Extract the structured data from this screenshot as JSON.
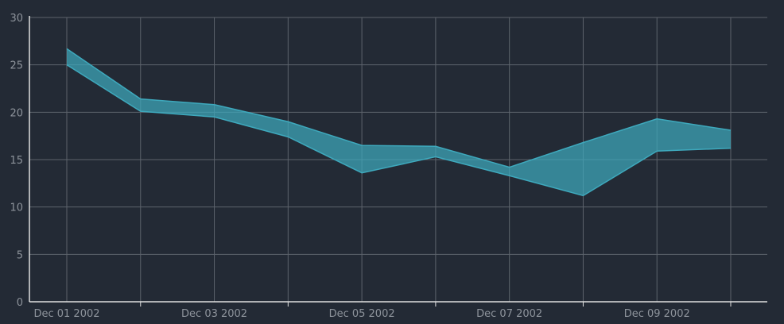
{
  "chart_data": {
    "type": "area",
    "x": [
      "2002-12-01",
      "2002-12-02",
      "2002-12-03",
      "2002-12-04",
      "2002-12-05",
      "2002-12-06",
      "2002-12-07",
      "2002-12-08",
      "2002-12-09",
      "2002-12-10"
    ],
    "series": [
      {
        "role": "upper",
        "values": [
          26.7,
          21.4,
          20.8,
          19.0,
          16.5,
          16.4,
          14.2,
          16.8,
          19.3,
          18.1
        ]
      },
      {
        "role": "lower",
        "values": [
          25.0,
          20.1,
          19.5,
          17.4,
          13.6,
          15.3,
          13.3,
          11.2,
          15.9,
          16.2
        ]
      }
    ],
    "x_tick_labels": [
      "Dec 01 2002",
      "Dec 03 2002",
      "Dec 05 2002",
      "Dec 07 2002",
      "Dec 09 2002"
    ],
    "y_ticks": [
      0,
      5,
      10,
      15,
      20,
      25,
      30
    ],
    "ylim": [
      0,
      30
    ],
    "grid": true,
    "colors": {
      "background": "#232a35",
      "fill": "#3ea9bd",
      "line": "#3ea9bd",
      "grid": "#5d636c",
      "axis": "#e0e0e0",
      "text": "#8d939b"
    }
  }
}
